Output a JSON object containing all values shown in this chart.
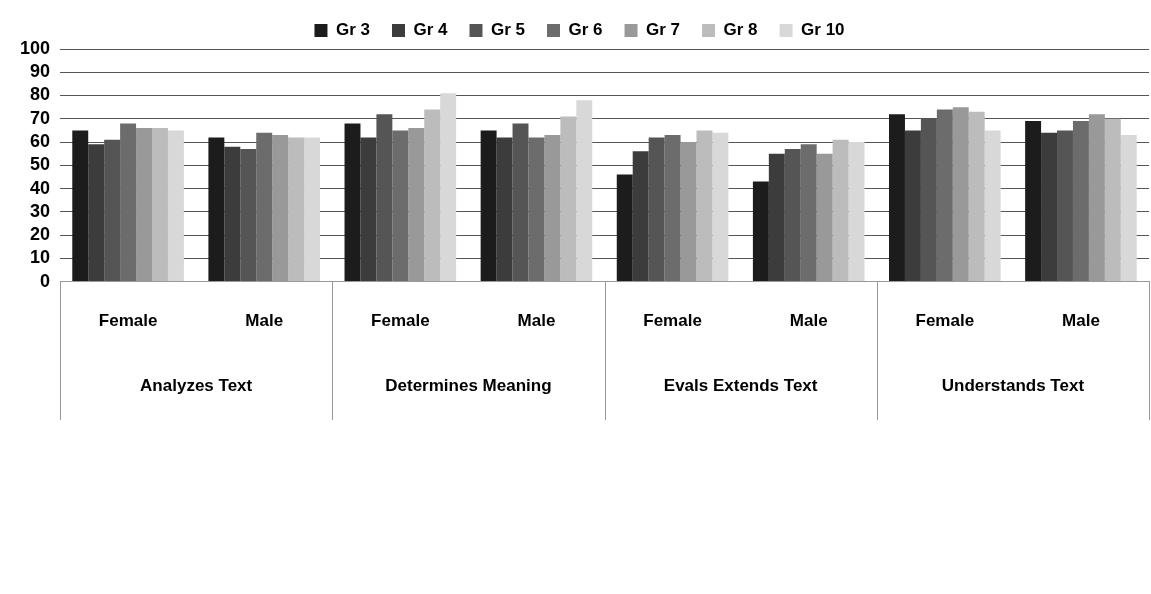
{
  "chart_data": {
    "type": "bar",
    "categories": [
      "Female",
      "Male",
      "Female",
      "Male",
      "Female",
      "Male",
      "Female",
      "Male"
    ],
    "series": [
      {
        "name": "Gr 3",
        "color": "#1c1c1c",
        "values": [
          65,
          62,
          68,
          65,
          46,
          43,
          72,
          69
        ]
      },
      {
        "name": "Gr 4",
        "color": "#3c3c3c",
        "values": [
          59,
          58,
          62,
          62,
          56,
          55,
          65,
          64
        ]
      },
      {
        "name": "Gr 5",
        "color": "#555555",
        "values": [
          61,
          57,
          72,
          68,
          62,
          57,
          70,
          65
        ]
      },
      {
        "name": "Gr 6",
        "color": "#6c6c6c",
        "values": [
          68,
          64,
          65,
          62,
          63,
          59,
          74,
          69
        ]
      },
      {
        "name": "Gr 7",
        "color": "#999999",
        "values": [
          66,
          63,
          66,
          63,
          60,
          55,
          75,
          72
        ]
      },
      {
        "name": "Gr 8",
        "color": "#bcbcbc",
        "values": [
          66,
          62,
          74,
          71,
          65,
          61,
          73,
          70
        ]
      },
      {
        "name": "Gr 10",
        "color": "#d8d8d8",
        "values": [
          65,
          62,
          81,
          78,
          64,
          60,
          65,
          63
        ]
      }
    ],
    "annotations": [
      "Analyzes Text",
      "Determines Meaning",
      "Evals Extends Text",
      "Understands Text"
    ],
    "ylim": [
      0,
      100
    ],
    "yticks": [
      0,
      10,
      20,
      30,
      40,
      50,
      60,
      70,
      80,
      90,
      100
    ],
    "grid": "y",
    "legend": "top"
  }
}
